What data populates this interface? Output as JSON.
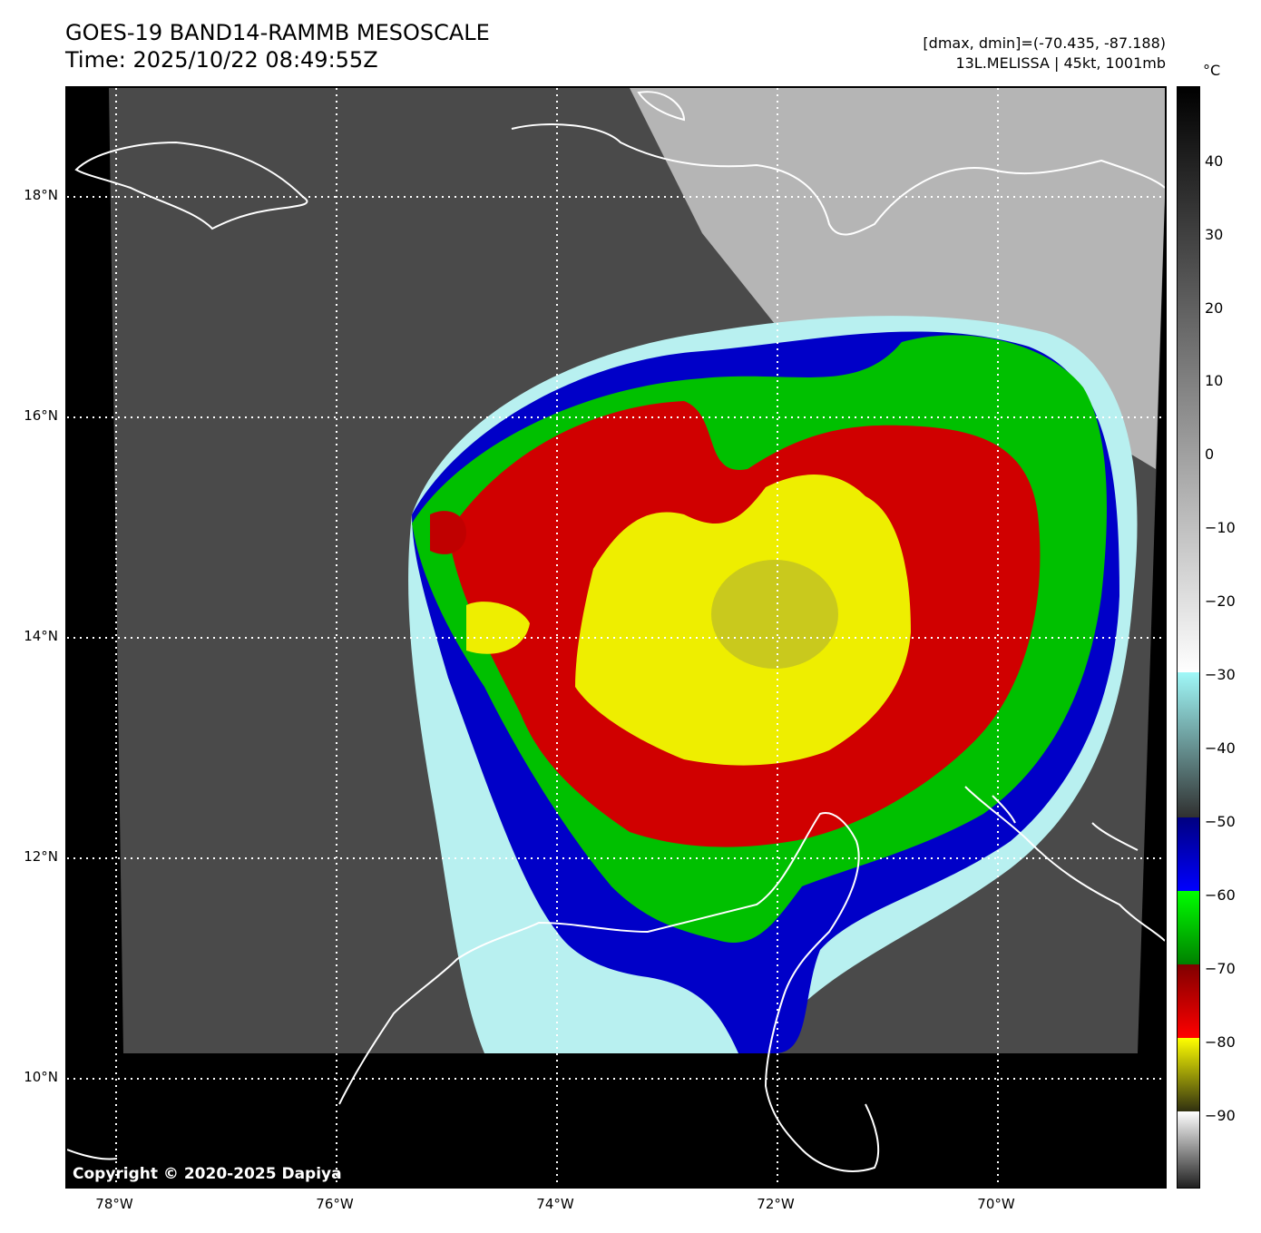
{
  "header": {
    "title_line1": "GOES-19 BAND14-RAMMB MESOSCALE",
    "title_line2": "Time: 2025/10/22 08:49:55Z",
    "range_text": "[dmax, dmin]=(-70.435, -87.188)",
    "storm_text": "13L.MELISSA | 45kt, 1001mb"
  },
  "map": {
    "copyright": "Copyright © 2020-2025 Dapiya",
    "lat_labels": [
      "18°N",
      "16°N",
      "14°N",
      "12°N",
      "10°N"
    ],
    "lon_labels": [
      "78°W",
      "76°W",
      "74°W",
      "72°W",
      "70°W"
    ]
  },
  "colorbar": {
    "unit": "°C",
    "ticks": [
      "40",
      "30",
      "20",
      "10",
      "0",
      "−10",
      "−20",
      "−30",
      "−40",
      "−50",
      "−60",
      "−70",
      "−80",
      "−90"
    ],
    "colors": {
      "warm": "#000000",
      "gray_mid": "#888888",
      "white": "#ffffff",
      "cyan": "#a0f0f0",
      "blue": "#0000c8",
      "green": "#00c000",
      "red": "#d00000",
      "yellow": "#ffff00"
    }
  }
}
